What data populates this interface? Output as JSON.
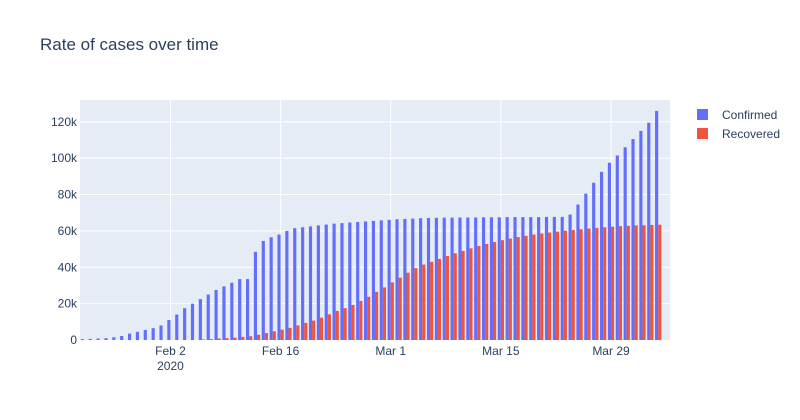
{
  "chart_data": {
    "type": "bar",
    "title": "Rate of cases over time",
    "xlabel": "",
    "ylabel": "",
    "x_start": "2020-01-22",
    "x_end": "2020-04-05",
    "x_ticks": [
      {
        "label": "Feb 2",
        "sublabel": "2020",
        "date": "2020-02-02"
      },
      {
        "label": "Feb 16",
        "sublabel": "",
        "date": "2020-02-16"
      },
      {
        "label": "Mar 1",
        "sublabel": "",
        "date": "2020-03-01"
      },
      {
        "label": "Mar 15",
        "sublabel": "",
        "date": "2020-03-15"
      },
      {
        "label": "Mar 29",
        "sublabel": "",
        "date": "2020-03-29"
      }
    ],
    "y_ticks": [
      {
        "label": "0",
        "value": 0
      },
      {
        "label": "20k",
        "value": 20000
      },
      {
        "label": "40k",
        "value": 40000
      },
      {
        "label": "60k",
        "value": 60000
      },
      {
        "label": "80k",
        "value": 80000
      },
      {
        "label": "100k",
        "value": 100000
      },
      {
        "label": "120k",
        "value": 120000
      }
    ],
    "ylim": [
      0,
      132000
    ],
    "grid": true,
    "legend_position": "top-right",
    "series": [
      {
        "name": "Confirmed",
        "color": "#636efa",
        "values": [
          500,
          600,
          800,
          1000,
          1500,
          2200,
          3500,
          4500,
          5500,
          6500,
          8000,
          11000,
          14000,
          17500,
          20000,
          22500,
          25000,
          27500,
          29500,
          31500,
          33500,
          33500,
          48500,
          54500,
          56500,
          58000,
          60000,
          61500,
          62000,
          62500,
          63000,
          63500,
          64000,
          64300,
          64600,
          64900,
          65200,
          65500,
          65800,
          66100,
          66400,
          66600,
          66800,
          67000,
          67100,
          67200,
          67300,
          67300,
          67400,
          67400,
          67400,
          67500,
          67500,
          67500,
          67600,
          67600,
          67600,
          67600,
          67600,
          67700,
          67700,
          67700,
          69000,
          74500,
          80500,
          86500,
          92500,
          97500,
          101500,
          106000,
          110500,
          115000,
          119500,
          126000
        ]
      },
      {
        "name": "Recovered",
        "color": "#ef553b",
        "values": [
          0,
          0,
          0,
          0,
          0,
          0,
          0,
          0,
          0,
          0,
          0,
          0,
          0,
          0,
          0,
          300,
          500,
          800,
          1000,
          1300,
          1700,
          2100,
          2900,
          3800,
          4800,
          5700,
          6700,
          8000,
          9400,
          10700,
          12300,
          14100,
          16000,
          17500,
          19300,
          21500,
          23800,
          26500,
          28900,
          31700,
          34300,
          37000,
          39500,
          41500,
          43000,
          44600,
          46200,
          47700,
          49000,
          50400,
          51700,
          52800,
          53900,
          54900,
          55800,
          56600,
          57300,
          58000,
          58600,
          59100,
          59600,
          60100,
          60500,
          60900,
          61300,
          61700,
          62000,
          62300,
          62600,
          62800,
          63000,
          63100,
          63300,
          63400
        ]
      }
    ]
  }
}
